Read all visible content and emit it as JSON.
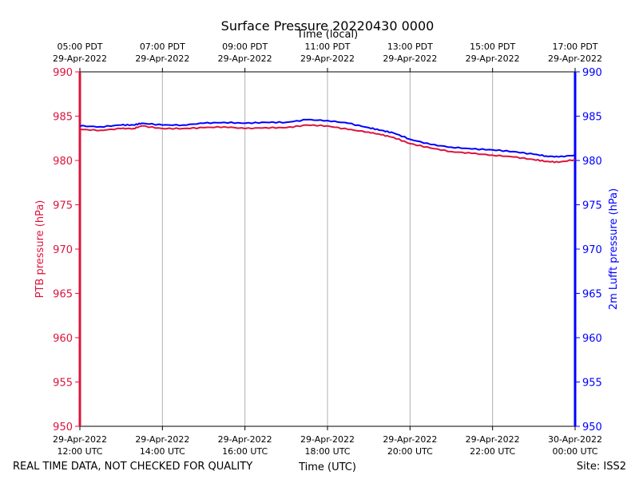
{
  "chart_data": {
    "type": "line",
    "title": "Surface Pressure 20220430 0000",
    "top_axis_label": "Time (local)",
    "xlabel": "Time (UTC)",
    "ylabel_left": "PTB pressure (hPa)",
    "ylabel_right": "2m Lufft pressure (hPa)",
    "footer_left": "REAL TIME DATA, NOT CHECKED FOR QUALITY",
    "footer_right": "Site: ISS2",
    "ylim": [
      950,
      990
    ],
    "yticks": [
      950,
      955,
      960,
      965,
      970,
      975,
      980,
      985,
      990
    ],
    "xlim_hours_utc": [
      12,
      24
    ],
    "grid": "vertical",
    "bottom_ticks": [
      {
        "hour": 12,
        "date": "29-Apr-2022",
        "time": "12:00 UTC"
      },
      {
        "hour": 14,
        "date": "29-Apr-2022",
        "time": "14:00 UTC"
      },
      {
        "hour": 16,
        "date": "29-Apr-2022",
        "time": "16:00 UTC"
      },
      {
        "hour": 18,
        "date": "29-Apr-2022",
        "time": "18:00 UTC"
      },
      {
        "hour": 20,
        "date": "29-Apr-2022",
        "time": "20:00 UTC"
      },
      {
        "hour": 22,
        "date": "29-Apr-2022",
        "time": "22:00 UTC"
      },
      {
        "hour": 24,
        "date": "30-Apr-2022",
        "time": "00:00 UTC"
      }
    ],
    "top_ticks": [
      {
        "hour": 12,
        "time": "05:00 PDT",
        "date": "29-Apr-2022"
      },
      {
        "hour": 14,
        "time": "07:00 PDT",
        "date": "29-Apr-2022"
      },
      {
        "hour": 16,
        "time": "09:00 PDT",
        "date": "29-Apr-2022"
      },
      {
        "hour": 18,
        "time": "11:00 PDT",
        "date": "29-Apr-2022"
      },
      {
        "hour": 20,
        "time": "13:00 PDT",
        "date": "29-Apr-2022"
      },
      {
        "hour": 22,
        "time": "15:00 PDT",
        "date": "29-Apr-2022"
      },
      {
        "hour": 24,
        "time": "17:00 PDT",
        "date": "29-Apr-2022"
      }
    ],
    "series": [
      {
        "axis": "left",
        "color": "#dc143c",
        "x": [
          12.0,
          12.5,
          13.0,
          13.3,
          13.5,
          14.0,
          14.5,
          15.0,
          15.5,
          16.0,
          16.5,
          17.0,
          17.5,
          18.0,
          18.5,
          19.0,
          19.3,
          19.6,
          20.0,
          20.5,
          21.0,
          21.5,
          22.0,
          22.5,
          23.0,
          23.3,
          23.6,
          24.0
        ],
        "y": [
          983.5,
          983.4,
          983.6,
          983.6,
          983.9,
          983.6,
          983.6,
          983.7,
          983.8,
          983.6,
          983.7,
          983.7,
          984.0,
          983.9,
          983.5,
          983.2,
          982.9,
          982.6,
          981.9,
          981.4,
          981.0,
          980.8,
          980.6,
          980.4,
          980.1,
          979.9,
          979.8,
          980.1
        ]
      },
      {
        "axis": "right",
        "color": "#0000ff",
        "x": [
          12.0,
          12.5,
          13.0,
          13.3,
          13.5,
          14.0,
          14.5,
          15.0,
          15.5,
          16.0,
          16.5,
          17.0,
          17.5,
          18.0,
          18.5,
          19.0,
          19.3,
          19.6,
          20.0,
          20.5,
          21.0,
          21.5,
          22.0,
          22.5,
          23.0,
          23.3,
          23.6,
          24.0
        ],
        "y": [
          983.9,
          983.8,
          984.0,
          984.0,
          984.2,
          984.0,
          984.0,
          984.2,
          984.3,
          984.2,
          984.3,
          984.3,
          984.6,
          984.5,
          984.2,
          983.7,
          983.4,
          983.1,
          982.4,
          981.8,
          981.5,
          981.3,
          981.2,
          981.0,
          980.7,
          980.5,
          980.4,
          980.6
        ]
      }
    ]
  }
}
